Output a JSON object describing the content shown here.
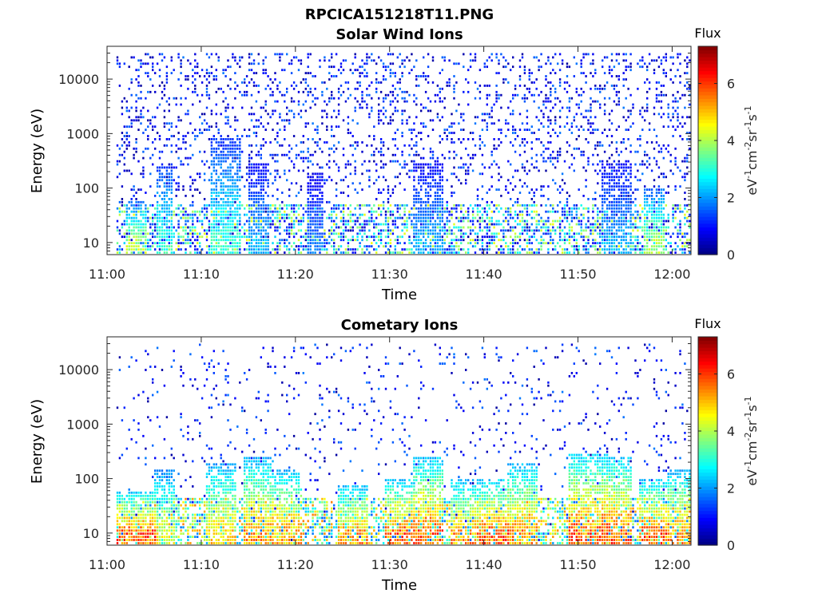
{
  "figure": {
    "title": "RPCICA151218T11.PNG"
  },
  "chart_data": [
    {
      "type": "heatmap",
      "title": "Solar Wind Ions",
      "xlabel": "Time",
      "ylabel": "Energy (eV)",
      "x_ticks": [
        "11:00",
        "11:10",
        "11:20",
        "11:30",
        "11:40",
        "11:50",
        "12:00"
      ],
      "y_ticks": [
        "10",
        "100",
        "1000",
        "10000"
      ],
      "y_scale": "log",
      "x_range": [
        "11:00",
        "12:02"
      ],
      "y_range": [
        6,
        40000
      ],
      "colorbar": {
        "label": "Flux",
        "ticks": [
          "0",
          "2",
          "4",
          "6"
        ],
        "range": [
          0,
          7.3
        ],
        "colormap": "jet"
      },
      "ylabel_colorbar": "eV-1cm-2sr-1s-1",
      "data_start": "11:01",
      "pattern": {
        "background_prob": 0.4,
        "background_level": [
          0.2,
          1.8
        ],
        "low_energy_max": 50,
        "low_energy_prob": 0.45,
        "low_energy_level": [
          0.5,
          4.5
        ],
        "bursts": [
          {
            "time": "11:03",
            "width_min": 1,
            "max_energy": 60,
            "level": 4.5
          },
          {
            "time": "11:06",
            "width_min": 0.8,
            "max_energy": 300,
            "level": 3.5
          },
          {
            "time": "11:12.5",
            "width_min": 1.5,
            "max_energy": 800,
            "level": 3.5
          },
          {
            "time": "11:16",
            "width_min": 1,
            "max_energy": 300,
            "level": 2.5
          },
          {
            "time": "11:22",
            "width_min": 0.8,
            "max_energy": 200,
            "level": 2
          },
          {
            "time": "11:34",
            "width_min": 1.5,
            "max_energy": 300,
            "level": 2.5
          },
          {
            "time": "11:54",
            "width_min": 1.5,
            "max_energy": 300,
            "level": 2.5
          },
          {
            "time": "11:58",
            "width_min": 1,
            "max_energy": 100,
            "level": 4.5
          }
        ]
      }
    },
    {
      "type": "heatmap",
      "title": "Cometary Ions",
      "xlabel": "Time",
      "ylabel": "Energy (eV)",
      "x_ticks": [
        "11:00",
        "11:10",
        "11:20",
        "11:30",
        "11:40",
        "11:50",
        "12:00"
      ],
      "y_ticks": [
        "10",
        "100",
        "1000",
        "10000"
      ],
      "y_scale": "log",
      "x_range": [
        "11:00",
        "12:02"
      ],
      "y_range": [
        6,
        40000
      ],
      "colorbar": {
        "label": "Flux",
        "ticks": [
          "0",
          "2",
          "4",
          "6"
        ],
        "range": [
          0,
          7.3
        ],
        "colormap": "jet"
      },
      "ylabel_colorbar": "eV-1cm-2sr-1s-1",
      "data_start": "11:01",
      "pattern": {
        "background_prob": 0.12,
        "background_level": [
          0.2,
          1.8
        ],
        "low_energy_max": 45,
        "low_energy_prob": 0.55,
        "low_energy_level": [
          1.5,
          5.5
        ],
        "bursts": [
          {
            "time": "11:03",
            "width_min": 2,
            "max_energy": 60,
            "level": 6.5
          },
          {
            "time": "11:06",
            "width_min": 1.2,
            "max_energy": 150,
            "level": 5
          },
          {
            "time": "11:12",
            "width_min": 1.5,
            "max_energy": 200,
            "level": 5.5
          },
          {
            "time": "11:16",
            "width_min": 1.5,
            "max_energy": 250,
            "level": 6
          },
          {
            "time": "11:19",
            "width_min": 1.5,
            "max_energy": 150,
            "level": 6
          },
          {
            "time": "11:26",
            "width_min": 1.5,
            "max_energy": 80,
            "level": 6
          },
          {
            "time": "11:31",
            "width_min": 1.5,
            "max_energy": 100,
            "level": 6.5
          },
          {
            "time": "11:34",
            "width_min": 1.5,
            "max_energy": 250,
            "level": 6.5
          },
          {
            "time": "11:38",
            "width_min": 1.5,
            "max_energy": 100,
            "level": 6
          },
          {
            "time": "11:41",
            "width_min": 1.5,
            "max_energy": 100,
            "level": 6.5
          },
          {
            "time": "11:44",
            "width_min": 1.5,
            "max_energy": 200,
            "level": 6
          },
          {
            "time": "11:51",
            "width_min": 2,
            "max_energy": 300,
            "level": 6.5
          },
          {
            "time": "11:54",
            "width_min": 1.5,
            "max_energy": 250,
            "level": 6.5
          },
          {
            "time": "11:58",
            "width_min": 1.5,
            "max_energy": 100,
            "level": 6.5
          },
          {
            "time": "12:01",
            "width_min": 1.5,
            "max_energy": 150,
            "level": 6
          }
        ]
      }
    }
  ]
}
